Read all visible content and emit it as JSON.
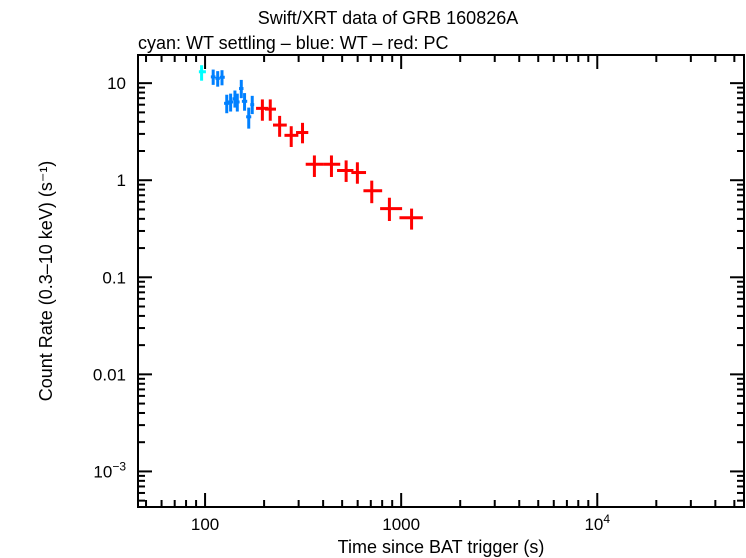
{
  "chart_data": {
    "type": "scatter",
    "title": "Swift/XRT data of GRB 160826A",
    "subtitle": "cyan: WT settling – blue: WT – red: PC",
    "xlabel": "Time since BAT trigger (s)",
    "ylabel": "Count Rate (0.3–10 keV) (s⁻¹)",
    "xscale": "log",
    "yscale": "log",
    "xlim": [
      45.5,
      56000
    ],
    "ylim": [
      0.00043,
      19.5
    ],
    "grid": false,
    "x_ticks": [
      {
        "value": 100,
        "base": "100",
        "exp": ""
      },
      {
        "value": 1000,
        "base": "1000",
        "exp": ""
      },
      {
        "value": 10000,
        "base": "10",
        "exp": "4"
      }
    ],
    "y_ticks": [
      {
        "value": 10,
        "base": "10",
        "exp": ""
      },
      {
        "value": 1,
        "base": "1",
        "exp": ""
      },
      {
        "value": 0.1,
        "base": "0.1",
        "exp": ""
      },
      {
        "value": 0.01,
        "base": "0.01",
        "exp": ""
      },
      {
        "value": 0.001,
        "base": "10",
        "exp": "−3"
      }
    ],
    "series": [
      {
        "mode": "WT settling",
        "color": "#00ffff",
        "points": [
          {
            "x": 96,
            "xlo": 93,
            "xhi": 101,
            "y": 13.1,
            "ylo": 10.6,
            "yhi": 15.3
          }
        ]
      },
      {
        "mode": "WT",
        "color": "#0080ff",
        "points": [
          {
            "x": 110,
            "xlo": 107,
            "xhi": 113,
            "y": 11.6,
            "ylo": 9.6,
            "yhi": 13.8
          },
          {
            "x": 116,
            "xlo": 113,
            "xhi": 119,
            "y": 11.2,
            "ylo": 9.2,
            "yhi": 13.3
          },
          {
            "x": 122,
            "xlo": 119,
            "xhi": 126,
            "y": 11.5,
            "ylo": 9.5,
            "yhi": 13.6
          },
          {
            "x": 129,
            "xlo": 125,
            "xhi": 133,
            "y": 6.2,
            "ylo": 4.9,
            "yhi": 7.6
          },
          {
            "x": 135,
            "xlo": 131,
            "xhi": 139,
            "y": 6.4,
            "ylo": 5.1,
            "yhi": 7.8
          },
          {
            "x": 142,
            "xlo": 138,
            "xhi": 146,
            "y": 6.9,
            "ylo": 5.6,
            "yhi": 8.4
          },
          {
            "x": 146,
            "xlo": 142,
            "xhi": 150,
            "y": 6.4,
            "ylo": 5.1,
            "yhi": 7.8
          },
          {
            "x": 153,
            "xlo": 149,
            "xhi": 157,
            "y": 8.8,
            "ylo": 7.0,
            "yhi": 10.8
          },
          {
            "x": 159,
            "xlo": 154,
            "xhi": 164,
            "y": 6.5,
            "ylo": 5.2,
            "yhi": 7.9
          },
          {
            "x": 167,
            "xlo": 162,
            "xhi": 172,
            "y": 4.5,
            "ylo": 3.4,
            "yhi": 5.6
          },
          {
            "x": 174,
            "xlo": 170,
            "xhi": 178,
            "y": 6.0,
            "ylo": 4.8,
            "yhi": 7.4
          }
        ]
      },
      {
        "mode": "PC",
        "color": "#ff0000",
        "points": [
          {
            "x": 196,
            "xlo": 182,
            "xhi": 210,
            "y": 5.5,
            "ylo": 4.1,
            "yhi": 6.8
          },
          {
            "x": 215,
            "xlo": 202,
            "xhi": 230,
            "y": 5.4,
            "ylo": 4.1,
            "yhi": 6.8
          },
          {
            "x": 240,
            "xlo": 222,
            "xhi": 261,
            "y": 3.7,
            "ylo": 2.8,
            "yhi": 4.6
          },
          {
            "x": 275,
            "xlo": 254,
            "xhi": 299,
            "y": 2.9,
            "ylo": 2.2,
            "yhi": 3.6
          },
          {
            "x": 314,
            "xlo": 291,
            "xhi": 336,
            "y": 3.1,
            "ylo": 2.4,
            "yhi": 3.9
          },
          {
            "x": 361,
            "xlo": 326,
            "xhi": 402,
            "y": 1.46,
            "ylo": 1.08,
            "yhi": 1.8
          },
          {
            "x": 441,
            "xlo": 402,
            "xhi": 489,
            "y": 1.46,
            "ylo": 1.08,
            "yhi": 1.8
          },
          {
            "x": 524,
            "xlo": 471,
            "xhi": 571,
            "y": 1.26,
            "ylo": 0.96,
            "yhi": 1.6
          },
          {
            "x": 598,
            "xlo": 557,
            "xhi": 662,
            "y": 1.2,
            "ylo": 0.92,
            "yhi": 1.53
          },
          {
            "x": 708,
            "xlo": 642,
            "xhi": 800,
            "y": 0.78,
            "ylo": 0.58,
            "yhi": 0.99
          },
          {
            "x": 871,
            "xlo": 781,
            "xhi": 1011,
            "y": 0.51,
            "ylo": 0.38,
            "yhi": 0.66
          },
          {
            "x": 1130,
            "xlo": 980,
            "xhi": 1290,
            "y": 0.41,
            "ylo": 0.31,
            "yhi": 0.51
          }
        ]
      }
    ]
  }
}
